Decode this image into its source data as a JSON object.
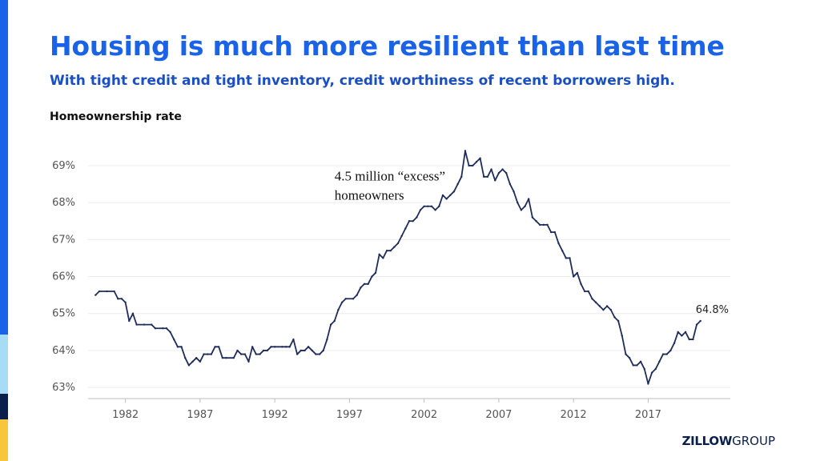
{
  "slide": {
    "title": "Housing is much more resilient than last time",
    "subtitle": "With tight credit and tight inventory, credit worthiness of recent borrowers high.",
    "chart_label": "Homeownership rate",
    "logo_bold": "ZILLOW",
    "logo_light": "GROUP"
  },
  "colors": {
    "title": "#1a63e8",
    "line": "#1f2d5c",
    "accent_blue": "#1a63e8",
    "accent_light": "#a6dcf5",
    "accent_navy": "#0b1f4d",
    "accent_yellow": "#f7c63d"
  },
  "chart_data": {
    "type": "line",
    "title": "Homeownership rate",
    "xlabel": "",
    "ylabel": "",
    "xlim": [
      1979.5,
      2022.5
    ],
    "ylim": [
      62.7,
      69.8
    ],
    "grid": true,
    "x_ticks": [
      1982,
      1987,
      1992,
      1997,
      2002,
      2007,
      2012,
      2017
    ],
    "y_ticks": [
      63,
      64,
      65,
      66,
      67,
      68,
      69
    ],
    "y_tick_labels": [
      "63%",
      "64%",
      "65%",
      "66%",
      "67%",
      "68%",
      "69%"
    ],
    "annotation": {
      "lines": [
        "4.5 million “excess”",
        "homeowners"
      ],
      "at": [
        1996.0,
        68.6
      ]
    },
    "end_label": "64.8%",
    "series": [
      {
        "points": [
          [
            1980.0,
            65.5
          ],
          [
            1980.25,
            65.6
          ],
          [
            1980.75,
            65.6
          ],
          [
            1981.25,
            65.6
          ],
          [
            1981.5,
            65.4
          ],
          [
            1981.75,
            65.4
          ],
          [
            1982.0,
            65.3
          ],
          [
            1982.25,
            64.8
          ],
          [
            1982.5,
            65.0
          ],
          [
            1982.75,
            64.7
          ],
          [
            1983.25,
            64.7
          ],
          [
            1983.75,
            64.7
          ],
          [
            1984.0,
            64.6
          ],
          [
            1984.5,
            64.6
          ],
          [
            1984.75,
            64.6
          ],
          [
            1985.0,
            64.5
          ],
          [
            1985.25,
            64.3
          ],
          [
            1985.5,
            64.1
          ],
          [
            1985.75,
            64.1
          ],
          [
            1986.0,
            63.8
          ],
          [
            1986.25,
            63.6
          ],
          [
            1986.5,
            63.7
          ],
          [
            1986.75,
            63.8
          ],
          [
            1987.0,
            63.7
          ],
          [
            1987.25,
            63.9
          ],
          [
            1987.5,
            63.9
          ],
          [
            1987.75,
            63.9
          ],
          [
            1988.0,
            64.1
          ],
          [
            1988.25,
            64.1
          ],
          [
            1988.5,
            63.8
          ],
          [
            1988.75,
            63.8
          ],
          [
            1989.25,
            63.8
          ],
          [
            1989.5,
            64.0
          ],
          [
            1989.75,
            63.9
          ],
          [
            1990.0,
            63.9
          ],
          [
            1990.25,
            63.7
          ],
          [
            1990.5,
            64.1
          ],
          [
            1990.75,
            63.9
          ],
          [
            1991.0,
            63.9
          ],
          [
            1991.25,
            64.0
          ],
          [
            1991.5,
            64.0
          ],
          [
            1991.75,
            64.1
          ],
          [
            1992.0,
            64.1
          ],
          [
            1992.5,
            64.1
          ],
          [
            1992.75,
            64.1
          ],
          [
            1993.0,
            64.1
          ],
          [
            1993.25,
            64.3
          ],
          [
            1993.5,
            63.9
          ],
          [
            1993.75,
            64.0
          ],
          [
            1994.0,
            64.0
          ],
          [
            1994.25,
            64.1
          ],
          [
            1994.5,
            64.0
          ],
          [
            1994.75,
            63.9
          ],
          [
            1995.0,
            63.9
          ],
          [
            1995.25,
            64.0
          ],
          [
            1995.5,
            64.3
          ],
          [
            1995.75,
            64.7
          ],
          [
            1996.0,
            64.8
          ],
          [
            1996.25,
            65.1
          ],
          [
            1996.5,
            65.3
          ],
          [
            1996.75,
            65.4
          ],
          [
            1997.25,
            65.4
          ],
          [
            1997.5,
            65.5
          ],
          [
            1997.75,
            65.7
          ],
          [
            1998.0,
            65.8
          ],
          [
            1998.25,
            65.8
          ],
          [
            1998.5,
            66.0
          ],
          [
            1998.75,
            66.1
          ],
          [
            1999.0,
            66.6
          ],
          [
            1999.25,
            66.5
          ],
          [
            1999.5,
            66.7
          ],
          [
            1999.75,
            66.7
          ],
          [
            2000.0,
            66.8
          ],
          [
            2000.25,
            66.9
          ],
          [
            2000.5,
            67.1
          ],
          [
            2000.75,
            67.3
          ],
          [
            2001.0,
            67.5
          ],
          [
            2001.25,
            67.5
          ],
          [
            2001.5,
            67.6
          ],
          [
            2001.75,
            67.8
          ],
          [
            2002.0,
            67.9
          ],
          [
            2002.25,
            67.9
          ],
          [
            2002.5,
            67.9
          ],
          [
            2002.75,
            67.8
          ],
          [
            2003.0,
            67.9
          ],
          [
            2003.25,
            68.2
          ],
          [
            2003.5,
            68.1
          ],
          [
            2003.75,
            68.2
          ],
          [
            2004.0,
            68.3
          ],
          [
            2004.25,
            68.5
          ],
          [
            2004.5,
            68.7
          ],
          [
            2004.75,
            69.4
          ],
          [
            2005.0,
            69.0
          ],
          [
            2005.25,
            69.0
          ],
          [
            2005.5,
            69.1
          ],
          [
            2005.75,
            69.2
          ],
          [
            2006.0,
            68.7
          ],
          [
            2006.25,
            68.7
          ],
          [
            2006.5,
            68.9
          ],
          [
            2006.75,
            68.6
          ],
          [
            2007.0,
            68.8
          ],
          [
            2007.25,
            68.9
          ],
          [
            2007.5,
            68.8
          ],
          [
            2007.75,
            68.5
          ],
          [
            2008.0,
            68.3
          ],
          [
            2008.25,
            68.0
          ],
          [
            2008.5,
            67.8
          ],
          [
            2008.75,
            67.9
          ],
          [
            2009.0,
            68.1
          ],
          [
            2009.25,
            67.6
          ],
          [
            2009.5,
            67.5
          ],
          [
            2009.75,
            67.4
          ],
          [
            2010.0,
            67.4
          ],
          [
            2010.25,
            67.4
          ],
          [
            2010.5,
            67.2
          ],
          [
            2010.75,
            67.2
          ],
          [
            2011.0,
            66.9
          ],
          [
            2011.25,
            66.7
          ],
          [
            2011.5,
            66.5
          ],
          [
            2011.75,
            66.5
          ],
          [
            2012.0,
            66.0
          ],
          [
            2012.25,
            66.1
          ],
          [
            2012.5,
            65.8
          ],
          [
            2012.75,
            65.6
          ],
          [
            2013.0,
            65.6
          ],
          [
            2013.25,
            65.4
          ],
          [
            2013.5,
            65.3
          ],
          [
            2013.75,
            65.2
          ],
          [
            2014.0,
            65.1
          ],
          [
            2014.25,
            65.2
          ],
          [
            2014.5,
            65.1
          ],
          [
            2014.75,
            64.9
          ],
          [
            2015.0,
            64.8
          ],
          [
            2015.25,
            64.4
          ],
          [
            2015.5,
            63.9
          ],
          [
            2015.75,
            63.8
          ],
          [
            2016.0,
            63.6
          ],
          [
            2016.25,
            63.6
          ],
          [
            2016.5,
            63.7
          ],
          [
            2016.75,
            63.5
          ],
          [
            2017.0,
            63.1
          ],
          [
            2017.25,
            63.4
          ],
          [
            2017.5,
            63.5
          ],
          [
            2017.75,
            63.7
          ],
          [
            2018.0,
            63.9
          ],
          [
            2018.25,
            63.9
          ],
          [
            2018.5,
            64.0
          ],
          [
            2018.75,
            64.2
          ],
          [
            2019.0,
            64.5
          ],
          [
            2019.25,
            64.4
          ],
          [
            2019.5,
            64.5
          ],
          [
            2019.75,
            64.3
          ],
          [
            2020.0,
            64.3
          ],
          [
            2020.25,
            64.7
          ],
          [
            2020.5,
            64.8
          ]
        ]
      }
    ]
  }
}
